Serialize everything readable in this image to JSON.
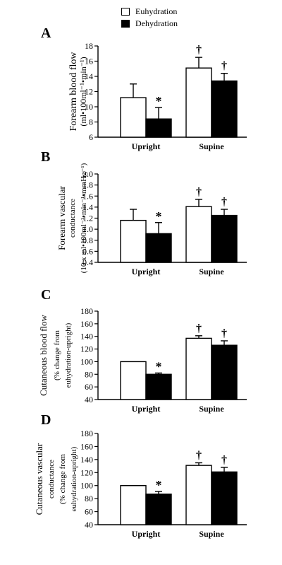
{
  "legend": {
    "euhydration": "Euhydration",
    "dehydration": "Dehydration"
  },
  "colors": {
    "euhydration": "#ffffff",
    "dehydration": "#000000"
  },
  "chart_data": [
    {
      "type": "bar",
      "panel_label": "A",
      "ylabel_lines": [
        "Forearm blood flow",
        "(ml•100ml⁻¹•min⁻¹)"
      ],
      "categories": [
        "Upright",
        "Supine"
      ],
      "ylim": [
        6,
        18
      ],
      "yticks": [
        6,
        8,
        10,
        12,
        14,
        16,
        18
      ],
      "ytick_labels": [
        "6",
        "8",
        "10",
        "12",
        "14",
        "16",
        "18"
      ],
      "series": [
        {
          "name": "Euhydration",
          "values": [
            11.2,
            15.1
          ],
          "errors": [
            1.8,
            1.4
          ]
        },
        {
          "name": "Dehydration",
          "values": [
            8.4,
            13.4
          ],
          "errors": [
            1.5,
            1.0
          ]
        }
      ],
      "annotations": [
        {
          "category": 0,
          "series": 1,
          "symbol": "*"
        },
        {
          "category": 1,
          "series": 0,
          "symbol": "†"
        },
        {
          "category": 1,
          "series": 1,
          "symbol": "†"
        }
      ]
    },
    {
      "type": "bar",
      "panel_label": "B",
      "ylabel_lines": [
        "Forearm vascular",
        "conductance",
        "(10 x ml•100ml⁻¹•min⁻¹•mmHg⁻¹)"
      ],
      "categories": [
        "Upright",
        "Supine"
      ],
      "ylim": [
        0.4,
        2.0
      ],
      "yticks": [
        0.4,
        0.6,
        0.8,
        1.0,
        1.2,
        1.4,
        1.6,
        1.8,
        2.0
      ],
      "ytick_labels": [
        "0.4",
        "0.6",
        "0.8",
        "1.0",
        "1.2",
        "1.4",
        "1.6",
        "1.8",
        "2.0"
      ],
      "series": [
        {
          "name": "Euhydration",
          "values": [
            1.16,
            1.41
          ],
          "errors": [
            0.2,
            0.13
          ]
        },
        {
          "name": "Dehydration",
          "values": [
            0.92,
            1.25
          ],
          "errors": [
            0.2,
            0.11
          ]
        }
      ],
      "annotations": [
        {
          "category": 0,
          "series": 1,
          "symbol": "*"
        },
        {
          "category": 1,
          "series": 0,
          "symbol": "†"
        },
        {
          "category": 1,
          "series": 1,
          "symbol": "†"
        }
      ]
    },
    {
      "type": "bar",
      "panel_label": "C",
      "ylabel_lines": [
        "Cutaneous blood flow",
        "(% change from",
        "euhydration-upright)"
      ],
      "categories": [
        "Upright",
        "Supine"
      ],
      "ylim": [
        40,
        180
      ],
      "yticks": [
        40,
        60,
        80,
        100,
        120,
        140,
        160,
        180
      ],
      "ytick_labels": [
        "40",
        "60",
        "80",
        "100",
        "120",
        "140",
        "160",
        "180"
      ],
      "series": [
        {
          "name": "Euhydration",
          "values": [
            100,
            137
          ],
          "errors": [
            0,
            4
          ]
        },
        {
          "name": "Dehydration",
          "values": [
            80,
            126
          ],
          "errors": [
            2,
            7
          ]
        }
      ],
      "annotations": [
        {
          "category": 0,
          "series": 1,
          "symbol": "*"
        },
        {
          "category": 1,
          "series": 0,
          "symbol": "†"
        },
        {
          "category": 1,
          "series": 1,
          "symbol": "†"
        }
      ]
    },
    {
      "type": "bar",
      "panel_label": "D",
      "ylabel_lines": [
        "Cutaneous vascular",
        "conductance",
        "(% change from",
        "euhydration-upright)"
      ],
      "categories": [
        "Upright",
        "Supine"
      ],
      "ylim": [
        40,
        180
      ],
      "yticks": [
        40,
        60,
        80,
        100,
        120,
        140,
        160,
        180
      ],
      "ytick_labels": [
        "40",
        "60",
        "80",
        "100",
        "120",
        "140",
        "160",
        "180"
      ],
      "series": [
        {
          "name": "Euhydration",
          "values": [
            100,
            131
          ],
          "errors": [
            0,
            4
          ]
        },
        {
          "name": "Dehydration",
          "values": [
            87,
            121
          ],
          "errors": [
            4,
            7
          ]
        }
      ],
      "annotations": [
        {
          "category": 0,
          "series": 1,
          "symbol": "*"
        },
        {
          "category": 1,
          "series": 0,
          "symbol": "†"
        },
        {
          "category": 1,
          "series": 1,
          "symbol": "†"
        }
      ]
    }
  ]
}
